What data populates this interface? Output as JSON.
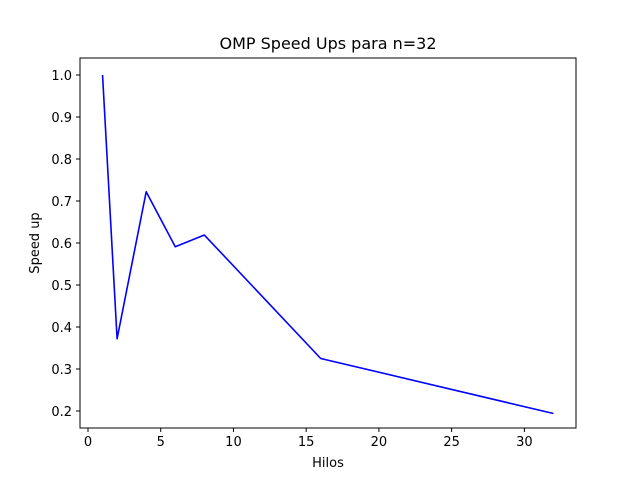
{
  "chart_data": {
    "type": "line",
    "title": "OMP Speed Ups para n=32",
    "xlabel": "Hilos",
    "ylabel": "Speed up",
    "xlim": [
      -0.55,
      33.55
    ],
    "ylim": [
      0.1595,
      1.0405
    ],
    "xticks": [
      0,
      5,
      10,
      15,
      20,
      25,
      30
    ],
    "xtick_labels": [
      "0",
      "5",
      "10",
      "15",
      "20",
      "25",
      "30"
    ],
    "yticks": [
      0.2,
      0.3,
      0.4,
      0.5,
      0.6,
      0.7,
      0.8,
      0.9,
      1.0
    ],
    "ytick_labels": [
      "0.2",
      "0.3",
      "0.4",
      "0.5",
      "0.6",
      "0.7",
      "0.8",
      "0.9",
      "1.0"
    ],
    "grid": false,
    "series": [
      {
        "color": "#0000ff",
        "x": [
          1,
          2,
          4,
          6,
          8,
          16,
          32
        ],
        "y": [
          1.0,
          0.372,
          0.722,
          0.591,
          0.619,
          0.325,
          0.194
        ]
      }
    ]
  }
}
